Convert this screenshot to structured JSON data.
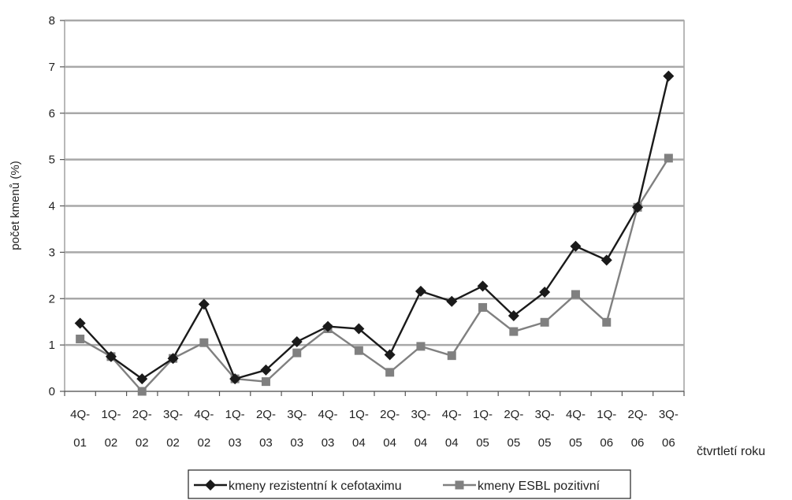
{
  "chart_data": {
    "type": "line",
    "title": "",
    "xlabel": "čtvrtletí roku",
    "ylabel": "počet kmenů (%)",
    "ylim": [
      0,
      8
    ],
    "yticks": [
      "0",
      "1",
      "2",
      "3",
      "4",
      "5",
      "6",
      "7",
      "8"
    ],
    "grid": true,
    "legend_position": "bottom",
    "categories": [
      [
        "4Q-",
        "01"
      ],
      [
        "1Q-",
        "02"
      ],
      [
        "2Q-",
        "02"
      ],
      [
        "3Q-",
        "02"
      ],
      [
        "4Q-",
        "02"
      ],
      [
        "1Q-",
        "03"
      ],
      [
        "2Q-",
        "03"
      ],
      [
        "3Q-",
        "03"
      ],
      [
        "4Q-",
        "03"
      ],
      [
        "1Q-",
        "04"
      ],
      [
        "2Q-",
        "04"
      ],
      [
        "3Q-",
        "04"
      ],
      [
        "4Q-",
        "04"
      ],
      [
        "1Q-",
        "05"
      ],
      [
        "2Q-",
        "05"
      ],
      [
        "3Q-",
        "05"
      ],
      [
        "4Q-",
        "05"
      ],
      [
        "1Q-",
        "06"
      ],
      [
        "2Q-",
        "06"
      ],
      [
        "3Q-",
        "06"
      ]
    ],
    "series": [
      {
        "name": "kmeny rezistentní k cefotaximu",
        "marker": "diamond",
        "color": "#1a1a1a",
        "values": [
          1.47,
          0.75,
          0.27,
          0.71,
          1.88,
          0.27,
          0.46,
          1.07,
          1.4,
          1.35,
          0.79,
          2.16,
          1.94,
          2.27,
          1.63,
          2.14,
          3.13,
          2.83,
          3.97,
          6.8
        ]
      },
      {
        "name": "kmeny ESBL pozitivní",
        "marker": "square",
        "color": "#808080",
        "values": [
          1.13,
          0.75,
          0.0,
          0.71,
          1.05,
          0.27,
          0.21,
          0.83,
          1.35,
          0.88,
          0.41,
          0.97,
          0.77,
          1.81,
          1.29,
          1.49,
          2.09,
          1.49,
          3.97,
          5.03
        ]
      }
    ]
  }
}
